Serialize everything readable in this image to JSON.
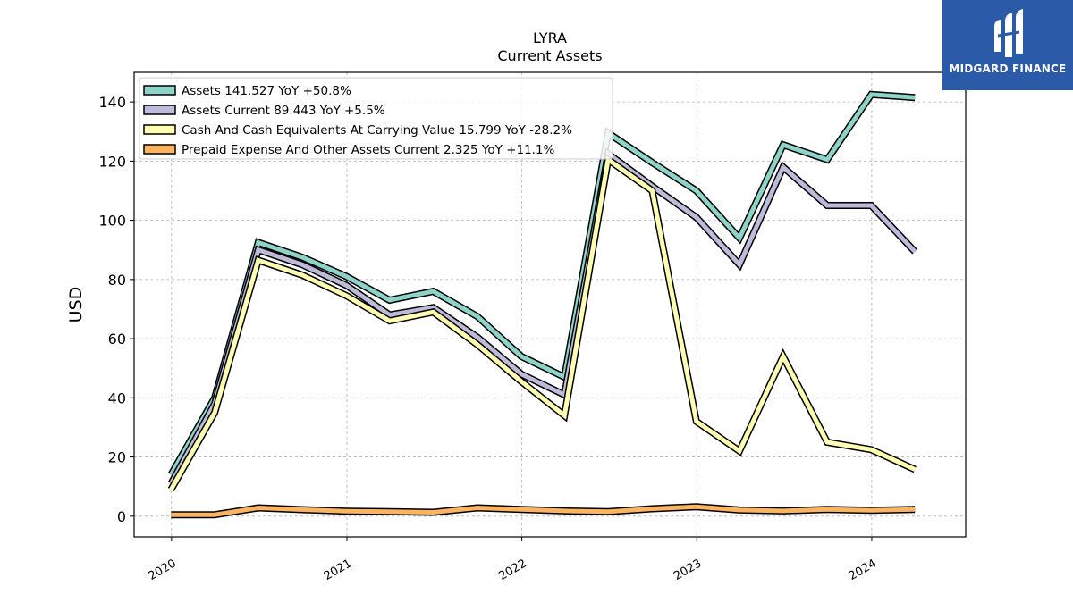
{
  "brand": {
    "name": "MIDGARD FINANCE",
    "logo_color": "#2a5aa8"
  },
  "chart_data": {
    "type": "line",
    "title": "LYRA",
    "subtitle": "Current  Assets",
    "ylabel": "USD",
    "xlabel": "",
    "ylim": [
      -7,
      150
    ],
    "xlim": [
      "2019-10-15",
      "2024-07-15"
    ],
    "yticks": [
      0,
      20,
      40,
      60,
      80,
      100,
      120,
      140
    ],
    "xticks": [
      {
        "label": "2020",
        "x": "2020-01-01"
      },
      {
        "label": "2021",
        "x": "2021-01-01"
      },
      {
        "label": "2022",
        "x": "2022-01-01"
      },
      {
        "label": "2023",
        "x": "2023-01-01"
      },
      {
        "label": "2024",
        "x": "2024-01-01"
      }
    ],
    "grid": true,
    "legend_position": "top-left",
    "x": [
      "2019-12-31",
      "2020-03-31",
      "2020-06-30",
      "2020-09-30",
      "2020-12-31",
      "2021-03-31",
      "2021-06-30",
      "2021-09-30",
      "2021-12-31",
      "2022-03-31",
      "2022-06-30",
      "2022-09-30",
      "2022-12-31",
      "2023-03-31",
      "2023-06-30",
      "2023-09-30",
      "2023-12-31",
      "2024-03-31"
    ],
    "series": [
      {
        "name": "Assets  141.527 YoY +50.8%",
        "color": "#8dd3c7",
        "values": [
          14,
          40,
          92.5,
          87.5,
          81,
          73,
          76,
          67.5,
          54,
          47,
          129.5,
          119.5,
          110,
          94,
          125.5,
          120.5,
          142.5,
          141.5
        ]
      },
      {
        "name": "Assets Current  89.443 YoY +5.5%",
        "color": "#bebada",
        "values": [
          11,
          38,
          90,
          85,
          78,
          68,
          70.5,
          60.5,
          48,
          41,
          122.5,
          111.5,
          101,
          85,
          118,
          105,
          105,
          89.4
        ]
      },
      {
        "name": "Cash And Cash Equivalents At Carrying Value  15.799 YoY -28.2%",
        "color": "#ffffb3",
        "values": [
          9,
          35,
          86.5,
          81.5,
          74.5,
          66,
          69,
          58,
          45.5,
          34,
          120.5,
          110,
          32,
          22,
          54,
          25,
          22.5,
          15.8
        ]
      },
      {
        "name": "Prepaid Expense And Other Assets Current  2.325 YoY +11.1%",
        "color": "#fdb462",
        "values": [
          0.5,
          0.5,
          2.8,
          2.2,
          1.7,
          1.5,
          1.3,
          2.8,
          2.3,
          1.8,
          1.5,
          2.5,
          3.2,
          2.1,
          1.8,
          2.3,
          2.0,
          2.3
        ]
      }
    ]
  }
}
